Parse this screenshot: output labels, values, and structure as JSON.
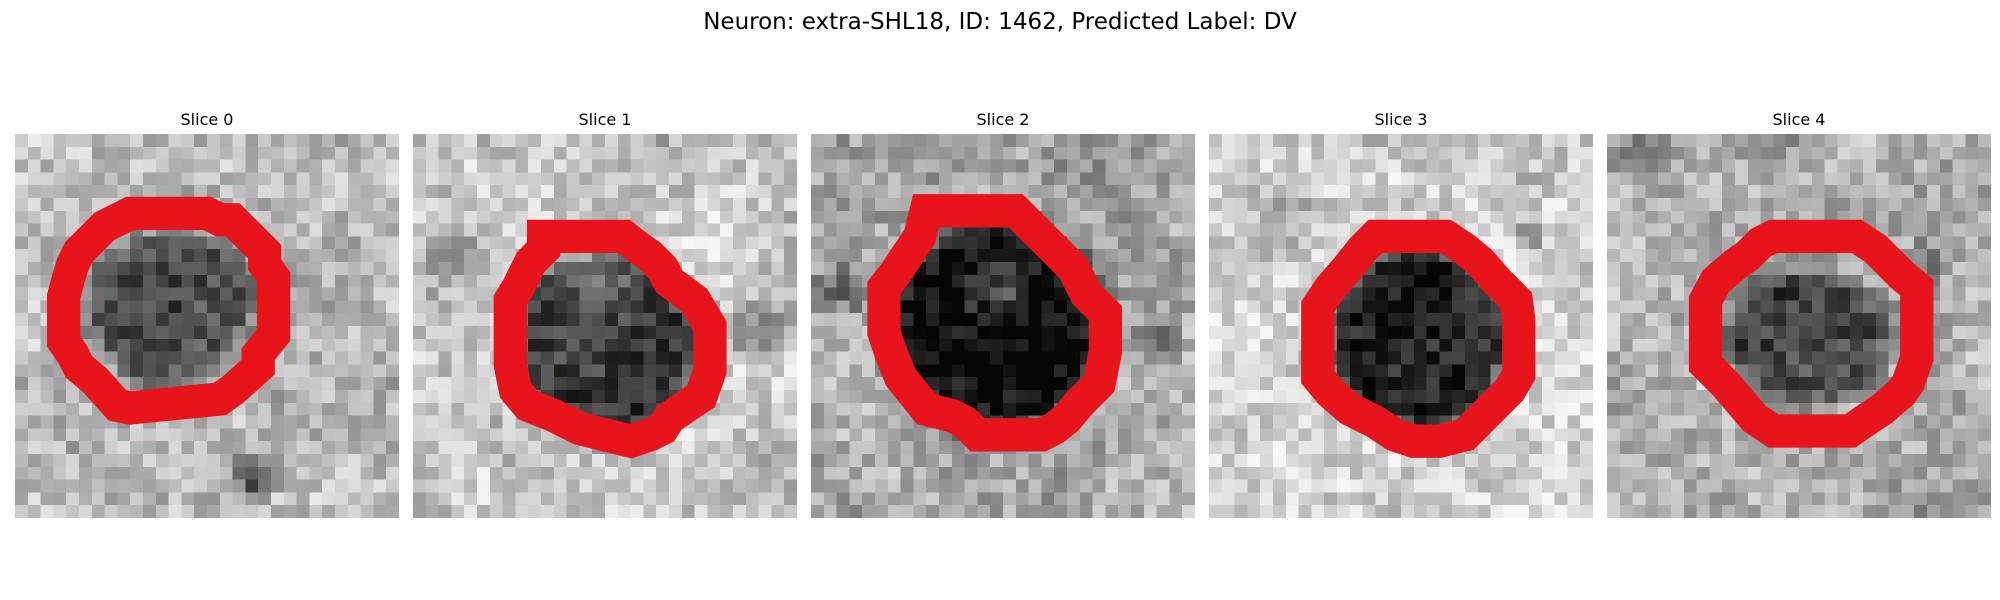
{
  "figure": {
    "title": "Neuron: extra-SHL18, ID: 1462, Predicted Label: DV"
  },
  "contour_color": "#e8141c",
  "slices": [
    {
      "label": "Slice 0",
      "contour_icon": "red-contour-outline"
    },
    {
      "label": "Slice 1",
      "contour_icon": "red-contour-outline"
    },
    {
      "label": "Slice 2",
      "contour_icon": "red-contour-outline"
    },
    {
      "label": "Slice 3",
      "contour_icon": "red-contour-outline"
    },
    {
      "label": "Slice 4",
      "contour_icon": "red-contour-outline"
    }
  ]
}
